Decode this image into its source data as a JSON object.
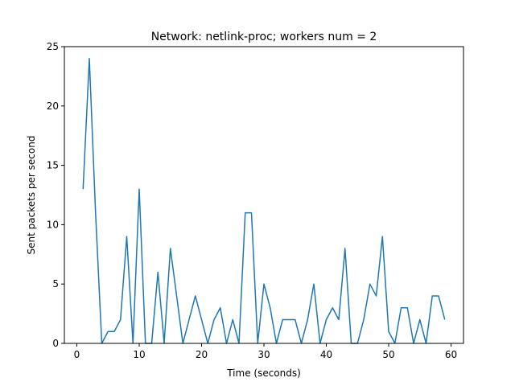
{
  "chart_data": {
    "type": "line",
    "title": "Network: netlink-proc; workers num = 2",
    "xlabel": "Time (seconds)",
    "ylabel": "Sent packets per second",
    "xlim": [
      -2,
      62
    ],
    "ylim": [
      0,
      25
    ],
    "xticks": [
      0,
      10,
      20,
      30,
      40,
      50,
      60
    ],
    "yticks": [
      0,
      5,
      10,
      15,
      20,
      25
    ],
    "grid": false,
    "legend": "none",
    "series": [
      {
        "color": "#1f77b4",
        "x": [
          1,
          2,
          3,
          4,
          5,
          6,
          7,
          8,
          9,
          10,
          11,
          12,
          13,
          14,
          15,
          16,
          17,
          18,
          19,
          20,
          21,
          22,
          23,
          24,
          25,
          26,
          27,
          28,
          29,
          30,
          31,
          32,
          33,
          34,
          35,
          36,
          37,
          38,
          39,
          40,
          41,
          42,
          43,
          44,
          45,
          46,
          47,
          48,
          49,
          50,
          51,
          52,
          53,
          54,
          55,
          56,
          57,
          58,
          59
        ],
        "values": [
          13,
          24,
          11,
          0,
          1,
          1,
          2,
          9,
          0,
          13,
          0,
          0,
          6,
          0,
          8,
          4,
          0,
          2,
          4,
          2,
          0,
          2,
          3,
          0,
          2,
          0,
          11,
          11,
          0,
          5,
          3,
          0,
          2,
          2,
          2,
          0,
          2,
          5,
          0,
          2,
          3,
          2,
          8,
          0,
          0,
          2,
          5,
          4,
          9,
          1,
          0,
          3,
          3,
          0,
          2,
          0,
          4,
          4,
          2
        ]
      }
    ]
  }
}
